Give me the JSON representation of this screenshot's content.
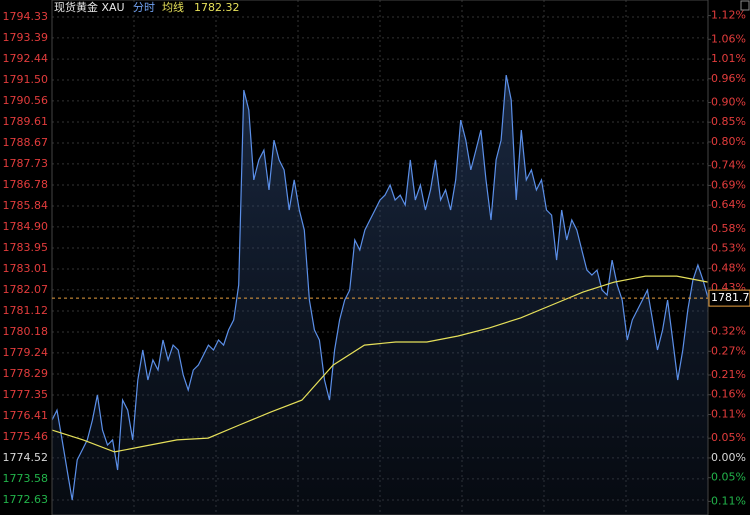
{
  "chart_data": {
    "type": "line",
    "title": "现货黄金 XAU",
    "mode": "分时",
    "avg_value": 1782.32,
    "last_price": 1781.7,
    "last_price_color": "#e8a040",
    "up_color": "#e23c3c",
    "down_color": "#22b34a",
    "flat_color": "#d8d8d8",
    "grid": true,
    "ylim": [
      1772.63,
      1794.33
    ],
    "yticks": [
      1794.33,
      1793.39,
      1792.44,
      {
        "value": 1791.5,
        "label": "1791.50"
      },
      1790.56,
      1789.61,
      1788.67,
      1787.73,
      1786.78,
      1785.84,
      {
        "value": 1784.9,
        "label": "1784.90"
      },
      1783.95,
      1783.01,
      1782.07,
      1781.12,
      1780.18,
      1779.24,
      1778.29,
      1777.35,
      1776.41,
      1775.46,
      1774.52,
      1773.58,
      1772.63
    ],
    "y2lim": [
      -0.1065,
      1.1164
    ],
    "y2ticks": [
      {
        "value": 1.12,
        "label": "1.12%"
      },
      {
        "value": 1.06,
        "label": "1.06%"
      },
      {
        "value": 1.01,
        "label": "1.01%"
      },
      {
        "value": 0.96,
        "label": "0.96%"
      },
      {
        "value": 0.9,
        "label": "0.90%"
      },
      {
        "value": 0.85,
        "label": "0.85%"
      },
      {
        "value": 0.8,
        "label": "0.80%"
      },
      {
        "value": 0.74,
        "label": "0.74%"
      },
      {
        "value": 0.69,
        "label": "0.69%"
      },
      {
        "value": 0.64,
        "label": "0.64%"
      },
      {
        "value": 0.58,
        "label": "0.58%"
      },
      {
        "value": 0.53,
        "label": "0.53%"
      },
      {
        "value": 0.48,
        "label": "0.48%"
      },
      {
        "value": 0.43,
        "label": "0.43%"
      },
      {
        "value": 0.32,
        "label": "0.32%"
      },
      {
        "value": 0.27,
        "label": "0.27%"
      },
      {
        "value": 0.21,
        "label": "0.21%"
      },
      {
        "value": 0.16,
        "label": "0.16%"
      },
      {
        "value": 0.11,
        "label": "0.11%"
      },
      {
        "value": 0.05,
        "label": "0.05%"
      },
      {
        "value": 0,
        "label": "0.00%"
      },
      {
        "value": -0.05,
        "label": "0.05%"
      },
      {
        "value": -0.11,
        "label": "0.11%"
      }
    ],
    "series": [
      {
        "color": "#5b8fe8",
        "area": true,
        "values": [
          1776.22,
          1776.67,
          1775.33,
          1773.98,
          1772.63,
          1774.43,
          1774.88,
          1775.33,
          1776.22,
          1777.35,
          1775.77,
          1775.1,
          1775.33,
          1773.98,
          1777.12,
          1776.67,
          1775.33,
          1778.02,
          1779.37,
          1778.02,
          1778.92,
          1778.47,
          1779.82,
          1778.92,
          1779.59,
          1779.37,
          1778.25,
          1777.57,
          1778.47,
          1778.69,
          1779.14,
          1779.59,
          1779.37,
          1779.82,
          1779.59,
          1780.27,
          1780.72,
          1782.29,
          1791.05,
          1790.15,
          1787.01,
          1787.91,
          1788.35,
          1786.56,
          1788.8,
          1787.91,
          1787.46,
          1785.66,
          1787.01,
          1785.66,
          1784.76,
          1781.61,
          1780.27,
          1779.82,
          1778.02,
          1777.12,
          1779.37,
          1780.72,
          1781.61,
          1782.06,
          1784.31,
          1783.86,
          1784.76,
          1785.21,
          1785.66,
          1786.11,
          1786.33,
          1786.78,
          1786.11,
          1786.33,
          1785.88,
          1787.91,
          1786.11,
          1786.78,
          1785.66,
          1786.56,
          1787.91,
          1786.11,
          1786.56,
          1785.66,
          1787.01,
          1789.7,
          1788.8,
          1787.46,
          1788.35,
          1789.25,
          1787.01,
          1785.21,
          1787.91,
          1788.8,
          1791.72,
          1790.6,
          1786.11,
          1789.25,
          1787.01,
          1787.46,
          1786.56,
          1787.01,
          1785.66,
          1785.43,
          1783.41,
          1785.66,
          1784.31,
          1785.21,
          1784.76,
          1783.86,
          1782.96,
          1782.74,
          1782.96,
          1782.06,
          1781.84,
          1783.41,
          1782.29,
          1781.61,
          1779.82,
          1780.72,
          1781.17,
          1781.61,
          1782.06,
          1780.72,
          1779.37,
          1780.27,
          1781.61,
          1779.82,
          1778.02,
          1779.37,
          1781.17,
          1782.51,
          1783.19,
          1782.51,
          1781.71
        ]
      },
      {
        "name": "均线",
        "color": "#e6e05a",
        "values": [
          1775.77,
          1775.33,
          1774.79,
          1775.06,
          1775.33,
          1775.41,
          1776.0,
          1776.58,
          1777.12,
          1778.69,
          1779.59,
          1779.73,
          1779.73,
          1780.0,
          1780.36,
          1780.81,
          1781.39,
          1781.97,
          1782.42,
          1782.69,
          1782.69,
          1782.42
        ]
      }
    ]
  }
}
